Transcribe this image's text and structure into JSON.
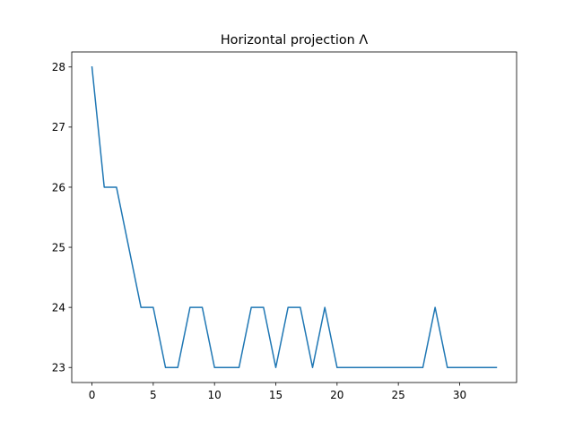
{
  "chart_data": {
    "type": "line",
    "title": "Horizontal projection Λ",
    "xlabel": "",
    "ylabel": "",
    "xlim": [
      -1.65,
      34.65
    ],
    "ylim": [
      22.75,
      28.25
    ],
    "xticks": [
      0,
      5,
      10,
      15,
      20,
      25,
      30
    ],
    "yticks": [
      23,
      24,
      25,
      26,
      27,
      28
    ],
    "grid": false,
    "line_color": "#1f77b4",
    "series": [
      {
        "x": [
          0,
          1,
          2,
          3,
          4,
          5,
          6,
          7,
          8,
          9,
          10,
          11,
          12,
          13,
          14,
          15,
          16,
          17,
          18,
          19,
          20,
          21,
          22,
          23,
          24,
          25,
          26,
          27,
          28,
          29,
          30,
          31,
          32,
          33
        ],
        "values": [
          28,
          26,
          26,
          25,
          24,
          24,
          23,
          23,
          24,
          24,
          23,
          23,
          23,
          24,
          24,
          23,
          24,
          24,
          23,
          24,
          23,
          23,
          23,
          23,
          23,
          23,
          23,
          23,
          24,
          23,
          23,
          23,
          23,
          23
        ]
      }
    ]
  }
}
